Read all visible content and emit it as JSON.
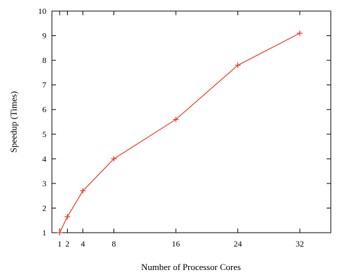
{
  "chart_data": {
    "type": "line",
    "xlabel": "Number of Processor Cores",
    "ylabel": "Speedup (Times)",
    "xlim": [
      0,
      36
    ],
    "ylim": [
      1,
      10
    ],
    "x_ticks": [
      1,
      2,
      4,
      8,
      16,
      24,
      32
    ],
    "y_ticks": [
      1,
      2,
      3,
      4,
      5,
      6,
      7,
      8,
      9,
      10
    ],
    "grid": false,
    "series": [
      {
        "color": "#e8391e",
        "marker": "plus",
        "x": [
          1,
          2,
          4,
          8,
          16,
          24,
          32
        ],
        "y": [
          1,
          1.65,
          2.7,
          4,
          5.6,
          7.8,
          9.1
        ]
      }
    ]
  }
}
